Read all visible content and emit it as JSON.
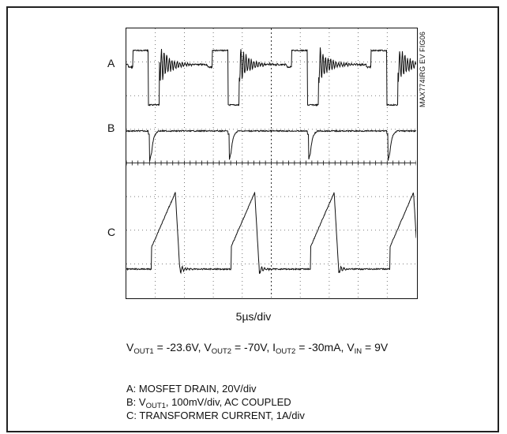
{
  "figure_id": "MAX774IRG EV FIG06",
  "channel_labels": {
    "a": "A",
    "b": "B",
    "c": "C"
  },
  "timebase": "5µs/div",
  "conditions": {
    "vout1_label": "V",
    "vout1_sub": "OUT1",
    "vout1_value": " = -23.6V, ",
    "vout2_label": "V",
    "vout2_sub": "OUT2",
    "vout2_value": " = -70V, ",
    "iout2_label": "I",
    "iout2_sub": "OUT2",
    "iout2_value": " = -30mA, ",
    "vin_label": "V",
    "vin_sub": "IN",
    "vin_value": " = 9V"
  },
  "legend": {
    "a": "A: MOSFET DRAIN, 20V/div",
    "b_prefix": "B: V",
    "b_sub": "OUT1",
    "b_rest": ", 100mV/div, AC COUPLED",
    "c": "C: TRANSFORMER CURRENT, 1A/div"
  },
  "chart_data": {
    "type": "line",
    "x_divisions": 10,
    "y_divisions": 8,
    "time_per_div_us": 5,
    "switching_period_us": 13.7,
    "series": [
      {
        "name": "A",
        "scale": "20V/div",
        "waveform": "drain voltage: flat high pulse, sharp drop to low during on-time, then decaying ringing"
      },
      {
        "name": "B",
        "scale": "100mV/div",
        "waveform": "output ripple: flat level with downward spike at each switching edge, recovering"
      },
      {
        "name": "C",
        "scale": "1A/div",
        "waveform": "transformer current: linear ramp up during on-time, sharp fall, small ringing at baseline"
      }
    ]
  }
}
